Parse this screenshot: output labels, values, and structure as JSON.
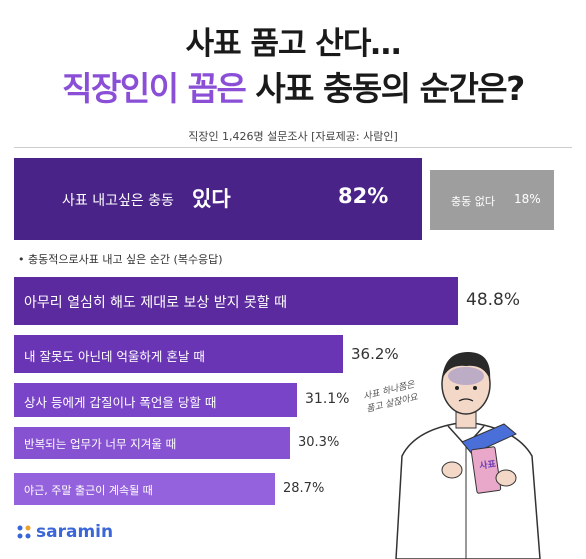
{
  "title": {
    "line1": "사표 품고 산다…",
    "line2_part1": "직장인이 꼽은",
    "line2_part2": "사표 충동의 순간은?"
  },
  "subtitle": "직장인 1,426명 설문조사  [자료제공: 사람인]",
  "summary": {
    "yes_label": "사표 내고싶은 충동",
    "yes_strong": "있다",
    "yes_value": "82%",
    "no_label": "충동 없다",
    "no_value": "18%"
  },
  "note": "• 충동적으로사표 내고 싶은 순간 (복수응답)",
  "chart_data": {
    "type": "bar",
    "orientation": "horizontal",
    "categories": [
      "아무리 열심히 해도 제대로 보상 받지 못할 때",
      "내 잘못도 아닌데 억울하게 혼날 때",
      "상사 등에게 갑질이나 폭언을 당할 때",
      "반복되는 업무가 너무 지겨울 때",
      "야근, 주말 출근이 계속될 때"
    ],
    "values": [
      48.8,
      36.2,
      31.1,
      30.3,
      28.7
    ],
    "value_labels": [
      "48.8%",
      "36.2%",
      "31.1%",
      "30.3%",
      "28.7%"
    ],
    "summary_values": {
      "있다": 82,
      "없다": 18
    },
    "colors": [
      "#5b2a9e",
      "#6a35b5",
      "#7a44c8",
      "#8752d2",
      "#9462dc"
    ]
  },
  "illustration": {
    "sign_text": "사표",
    "handwriting_line1": "사표 하나쯤은",
    "handwriting_line2": "품고 살잖아요"
  },
  "brand": {
    "name": "saramin",
    "color": "#3a66d8"
  }
}
